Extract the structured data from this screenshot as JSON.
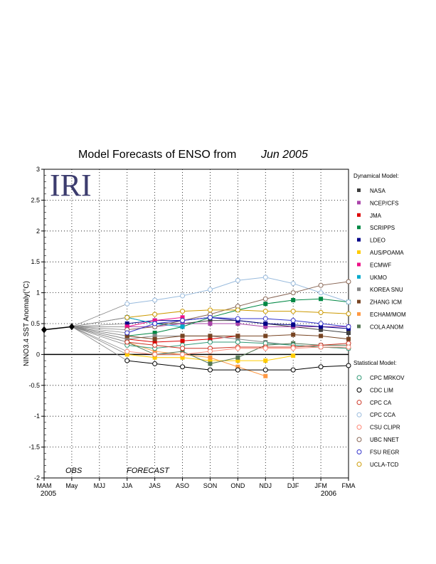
{
  "chart_data": {
    "type": "line",
    "title": "Model Forecasts of ENSO from",
    "title_date": "Jun 2005",
    "ylabel": "NINO3.4 SST Anomaly(°C)",
    "ylim": [
      -2,
      3
    ],
    "y_ticks": [
      "3",
      "2.5",
      "2",
      "1.5",
      "1",
      "0.5",
      "0",
      "-0.5",
      "-1",
      "-1.5",
      "-2"
    ],
    "categories": [
      "MAM",
      "May",
      "MJJ",
      "JJA",
      "JAS",
      "ASO",
      "SON",
      "OND",
      "NDJ",
      "DJF",
      "JFM",
      "FMA"
    ],
    "year_start": "2005",
    "year_end": "2006",
    "obs_label": "OBS",
    "forecast_label": "FORECAST",
    "logo": "IRI",
    "grid": true,
    "legend_position": "right",
    "observed": [
      0.4,
      0.45
    ],
    "dynamical_header": "Dynamical Model:",
    "statistical_header": "Statistical Model:",
    "dynamical": [
      {
        "name": "NASA",
        "color": "#404040",
        "values": [
          0.6,
          0.5,
          0.5,
          0.55,
          0.55,
          0.5,
          0.45,
          0.4,
          0.35
        ]
      },
      {
        "name": "NCEP/CFS",
        "color": "#aa44aa",
        "values": [
          0.45,
          0.45,
          0.5,
          0.5,
          0.5,
          0.45,
          0.45,
          0.45,
          0.45
        ]
      },
      {
        "name": "JMA",
        "color": "#dd0000",
        "values": [
          0.25,
          0.2,
          0.22,
          0.25,
          0.3,
          null,
          null,
          null,
          null
        ]
      },
      {
        "name": "SCRIPPS",
        "color": "#008844",
        "values": [
          0.3,
          0.35,
          0.45,
          0.6,
          0.72,
          0.82,
          0.88,
          0.9,
          0.85
        ]
      },
      {
        "name": "LDEO",
        "color": "#000088",
        "values": [
          0.5,
          0.55,
          0.55,
          0.6,
          0.55,
          0.5,
          0.48,
          0.45,
          0.42
        ]
      },
      {
        "name": "AUS/POAMA",
        "color": "#ffcc00",
        "values": [
          0.0,
          -0.05,
          -0.05,
          -0.1,
          -0.1,
          -0.1,
          -0.02,
          null,
          null
        ]
      },
      {
        "name": "ECMWF",
        "color": "#ee1188",
        "values": [
          0.45,
          0.55,
          0.6,
          null,
          null,
          null,
          null,
          null,
          null
        ]
      },
      {
        "name": "UKMO",
        "color": "#00aacc",
        "values": [
          0.6,
          0.5,
          0.45,
          null,
          null,
          null,
          null,
          null,
          null
        ]
      },
      {
        "name": "KOREA SNU",
        "color": "#888888",
        "values": [
          0.25,
          0.3,
          0.3,
          0.3,
          0.25,
          0.2,
          0.15,
          0.12,
          0.1
        ]
      },
      {
        "name": "ZHANG ICM",
        "color": "#774422",
        "values": [
          0.3,
          0.25,
          0.3,
          0.3,
          0.3,
          0.3,
          0.32,
          0.3,
          0.25
        ]
      },
      {
        "name": "ECHAM/MOM",
        "color": "#ff9944",
        "values": [
          0.2,
          0.05,
          0.0,
          -0.05,
          -0.2,
          -0.35,
          null,
          null,
          null
        ]
      },
      {
        "name": "COLA ANOM",
        "color": "#557755",
        "values": [
          0.2,
          0.0,
          0.05,
          -0.15,
          -0.05,
          0.15,
          0.18,
          0.15,
          0.15
        ]
      }
    ],
    "statistical": [
      {
        "name": "CPC MRKOV",
        "color": "#339977",
        "values": [
          0.15,
          0.1,
          0.15,
          0.2,
          0.2,
          0.18,
          0.15,
          0.12,
          0.1
        ]
      },
      {
        "name": "CDC LIM",
        "color": "#000000",
        "values": [
          -0.1,
          -0.15,
          -0.2,
          -0.25,
          -0.25,
          -0.25,
          -0.25,
          -0.2,
          -0.18
        ]
      },
      {
        "name": "CPC CA",
        "color": "#cc3322",
        "values": [
          0.2,
          0.15,
          0.1,
          0.1,
          0.12,
          0.12,
          0.12,
          0.15,
          0.18
        ]
      },
      {
        "name": "CPC CCA",
        "color": "#99bbdd",
        "values": [
          0.82,
          0.88,
          0.95,
          1.05,
          1.2,
          1.25,
          1.15,
          1.0,
          0.85
        ]
      },
      {
        "name": "CSU CLIPR",
        "color": "#ff8877",
        "values": [
          0.05,
          0.0,
          0.0,
          0.05,
          0.1,
          0.1,
          0.1,
          0.12,
          0.12
        ]
      },
      {
        "name": "UBC NNET",
        "color": "#886655",
        "values": [
          0.4,
          0.45,
          0.55,
          0.65,
          0.78,
          0.9,
          1.0,
          1.12,
          1.18
        ]
      },
      {
        "name": "FSU REGR",
        "color": "#3333cc",
        "values": [
          0.35,
          0.5,
          0.55,
          0.6,
          0.58,
          0.58,
          0.55,
          0.5,
          0.45
        ]
      },
      {
        "name": "UCLA-TCD",
        "color": "#cc9900",
        "values": [
          0.6,
          0.65,
          0.7,
          0.72,
          0.72,
          0.7,
          0.7,
          0.68,
          0.66
        ]
      }
    ]
  }
}
